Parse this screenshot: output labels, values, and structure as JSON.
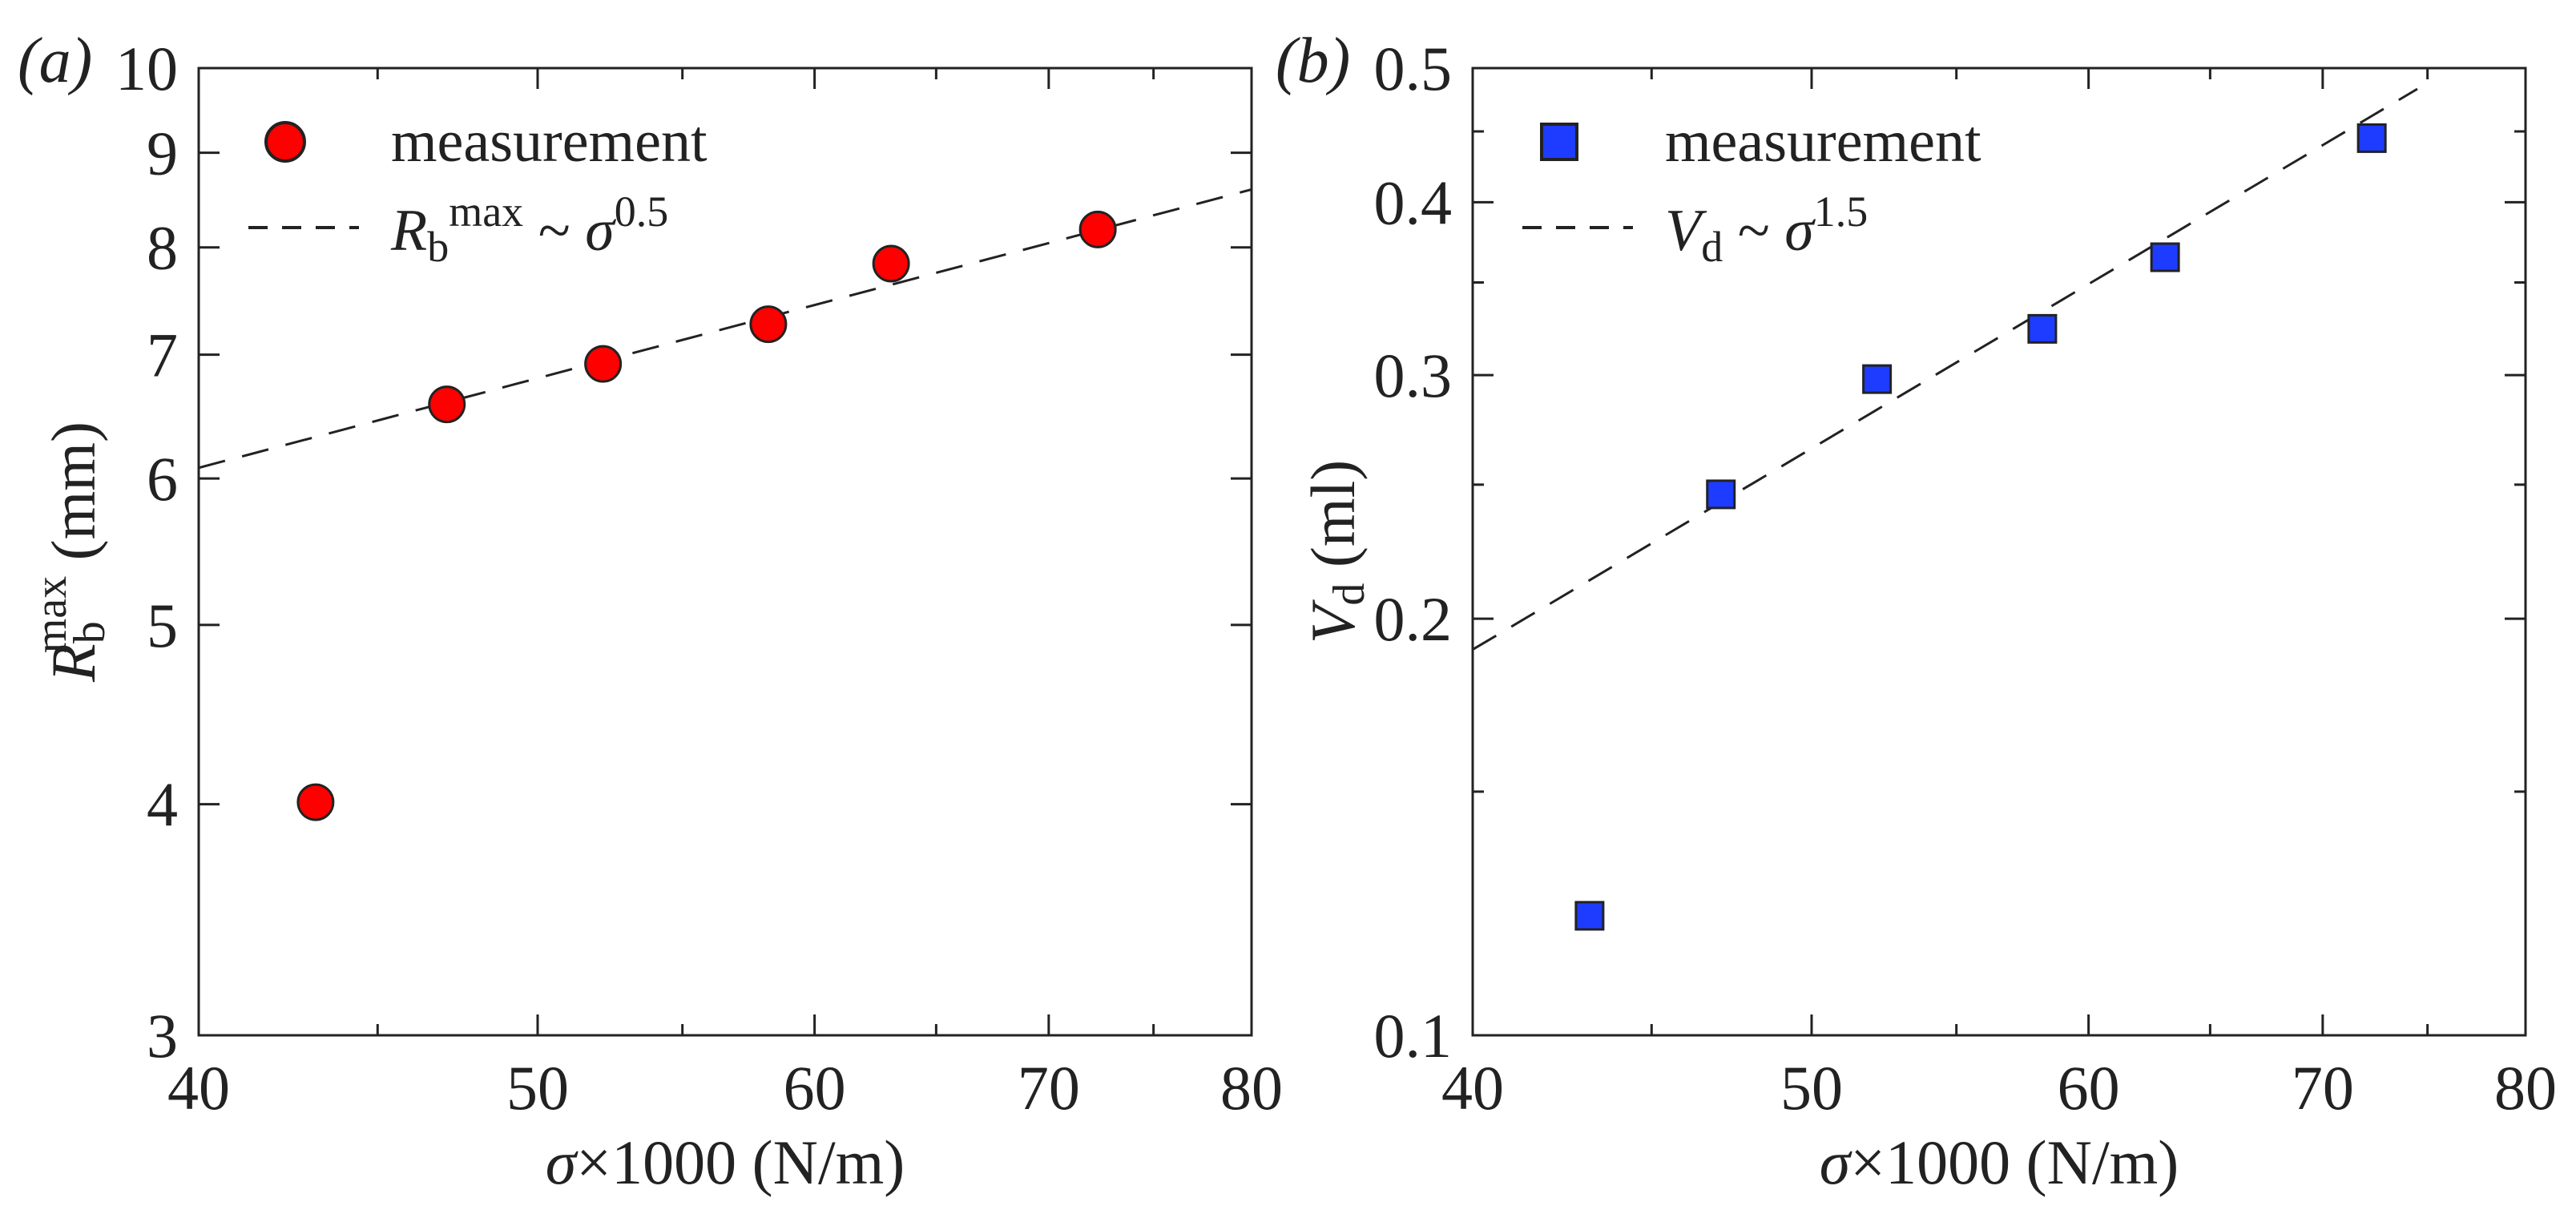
{
  "chart_data": [
    {
      "type": "scatter",
      "panel_label": "(a)",
      "x_scale": "log",
      "y_scale": "log",
      "xlabel": "σ×1000 (N/m)",
      "ylabel_parts": {
        "symbol": "R",
        "sub": "b",
        "sup": "max",
        "unit": " (mm)"
      },
      "xlim": [
        40,
        80
      ],
      "ylim": [
        3,
        10
      ],
      "x_ticks": [
        40,
        50,
        60,
        70,
        80
      ],
      "y_ticks": [
        3,
        4,
        5,
        6,
        7,
        8,
        9,
        10
      ],
      "x_minor_ticks": [
        45,
        55,
        65,
        75
      ],
      "grid": false,
      "legend_position": "top-left",
      "series": [
        {
          "name": "measurement",
          "marker": "circle",
          "color": "#ff0000",
          "x": [
            43.2,
            47.1,
            52.2,
            58.2,
            63.1,
            72.3
          ],
          "y": [
            4.01,
            6.58,
            6.92,
            7.27,
            7.84,
            8.18
          ]
        }
      ],
      "fit": {
        "legend_parts": {
          "symbol": "R",
          "sub": "b",
          "sup": "max",
          "rel": " ~ ",
          "var": "σ",
          "exp": "0.5"
        },
        "exponent": 0.5,
        "ref_x": 40,
        "ref_y": 6.08,
        "x_range": [
          40,
          80
        ]
      }
    },
    {
      "type": "scatter",
      "panel_label": "(b)",
      "x_scale": "log",
      "y_scale": "log",
      "xlabel": "σ×1000 (N/m)",
      "ylabel_parts": {
        "symbol": "V",
        "sub": "d",
        "sup": "",
        "unit": " (ml)"
      },
      "xlim": [
        40,
        80
      ],
      "ylim": [
        0.1,
        0.5
      ],
      "x_ticks": [
        40,
        50,
        60,
        70,
        80
      ],
      "y_ticks": [
        0.1,
        0.2,
        0.3,
        0.4,
        0.5
      ],
      "y_minor_ticks": [
        0.15,
        0.25,
        0.35,
        0.45
      ],
      "x_minor_ticks": [
        45,
        55,
        65,
        75
      ],
      "grid": false,
      "legend_position": "top-left",
      "series": [
        {
          "name": "measurement",
          "marker": "square",
          "color": "#1e3cff",
          "x": [
            43.2,
            47.1,
            52.2,
            58.2,
            63.1,
            72.3
          ],
          "y": [
            0.122,
            0.246,
            0.298,
            0.324,
            0.365,
            0.445
          ]
        }
      ],
      "fit": {
        "legend_parts": {
          "symbol": "V",
          "sub": "d",
          "sup": "",
          "rel": " ~ ",
          "var": "σ",
          "exp": "1.5"
        },
        "exponent": 1.5,
        "ref_x": 40,
        "ref_y": 0.19,
        "x_range": [
          40,
          74.5
        ]
      }
    }
  ]
}
